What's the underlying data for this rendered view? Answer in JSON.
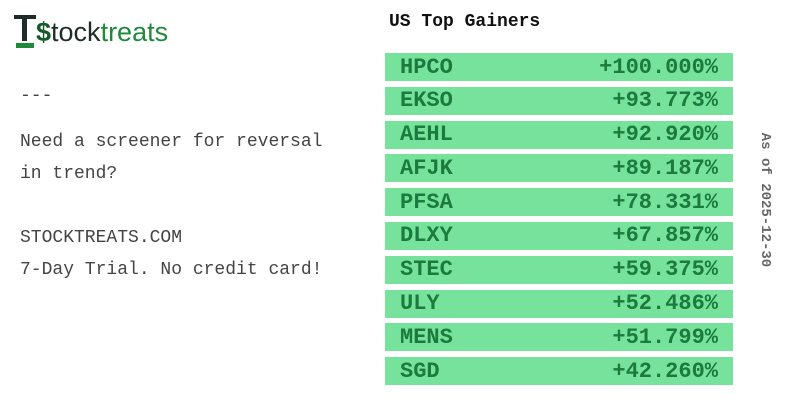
{
  "logo": {
    "parts": [
      "$",
      "tock",
      "treats"
    ]
  },
  "sidebar": {
    "separator": "---",
    "lines": [
      "Need a screener for reversal",
      "in trend?",
      "STOCKTREATS.COM",
      "7-Day Trial. No credit card!"
    ]
  },
  "title": "US Top Gainers",
  "table": {
    "rows": [
      [
        "HPCO",
        "+100.000%"
      ],
      [
        "EKSO",
        "+93.773%"
      ],
      [
        "AEHL",
        "+92.920%"
      ],
      [
        "AFJK",
        "+89.187%"
      ],
      [
        "PFSA",
        "+78.331%"
      ],
      [
        "DLXY",
        "+67.857%"
      ],
      [
        "STEC",
        "+59.375%"
      ],
      [
        "ULY",
        "+52.486%"
      ],
      [
        "MENS",
        "+51.799%"
      ],
      [
        "SGD",
        "+42.260%"
      ]
    ]
  },
  "as_of": "As of 2025-12-30"
}
